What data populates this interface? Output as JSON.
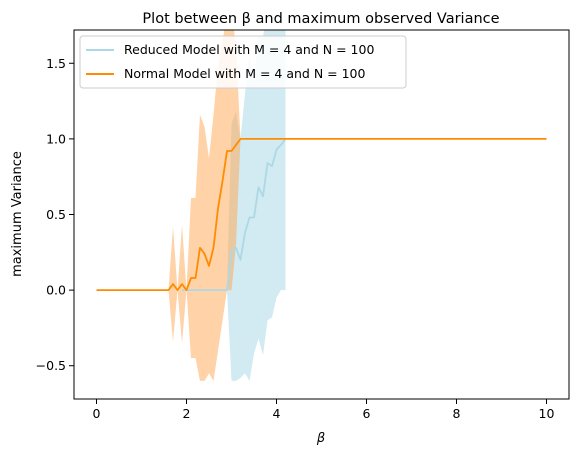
{
  "chart_data": {
    "type": "line",
    "title": "Plot between β and maximum observed Variance",
    "xlabel": "β",
    "ylabel": "maximum Variance",
    "xlim": [
      -0.5,
      10.5
    ],
    "ylim": [
      -0.72,
      1.72
    ],
    "xticks": [
      0,
      2,
      4,
      6,
      8,
      10
    ],
    "xtick_labels": [
      "0",
      "2",
      "4",
      "6",
      "8",
      "10"
    ],
    "yticks": [
      -0.5,
      0.0,
      0.5,
      1.0,
      1.5
    ],
    "ytick_labels": [
      "−0.5",
      "0.0",
      "0.5",
      "1.0",
      "1.5"
    ],
    "grid": false,
    "legend_position": "top-left",
    "series": [
      {
        "name": "Reduced Model with M = 4 and N = 100",
        "color": "#add8e6",
        "band_color": "#add8e6",
        "x": [
          1.9,
          2.9,
          3.0,
          3.1,
          3.2,
          3.3,
          3.4,
          3.5,
          3.6,
          3.7,
          3.8,
          3.9,
          4.0,
          4.1,
          4.2
        ],
        "y": [
          0.0,
          0.0,
          0.25,
          0.28,
          0.2,
          0.38,
          0.48,
          0.48,
          0.68,
          0.62,
          0.84,
          0.82,
          0.93,
          0.96,
          1.0
        ],
        "lower": [
          0.0,
          0.0,
          -0.6,
          -0.6,
          -0.58,
          -0.55,
          -0.6,
          -0.42,
          -0.32,
          -0.43,
          -0.2,
          -0.18,
          -0.05,
          0.0,
          0.0
        ],
        "upper": [
          0.0,
          0.0,
          1.1,
          1.18,
          1.0,
          1.3,
          1.56,
          1.37,
          1.68,
          1.67,
          1.88,
          1.82,
          1.91,
          1.92,
          2.0
        ]
      },
      {
        "name": "Normal Model with M = 4 and N = 100",
        "color": "#ff8c00",
        "band_color": "#ffa54f",
        "x": [
          0.0,
          1.6,
          1.7,
          1.8,
          1.9,
          2.0,
          2.1,
          2.2,
          2.3,
          2.4,
          2.5,
          2.6,
          2.7,
          2.8,
          2.9,
          3.0,
          3.1,
          3.2,
          3.3,
          10.0
        ],
        "y": [
          0.0,
          0.0,
          0.04,
          0.0,
          0.04,
          0.0,
          0.08,
          0.08,
          0.28,
          0.24,
          0.16,
          0.28,
          0.54,
          0.72,
          0.92,
          0.92,
          0.96,
          1.0,
          1.0,
          1.0
        ],
        "lower": [
          0.0,
          0.0,
          -0.34,
          0.0,
          -0.35,
          0.0,
          -0.45,
          -0.45,
          -0.6,
          -0.6,
          -0.55,
          -0.6,
          -0.4,
          -0.2,
          0.0,
          0.0,
          0.3,
          1.0,
          1.0,
          1.0
        ],
        "upper": [
          0.0,
          0.0,
          0.42,
          0.0,
          0.43,
          0.0,
          0.61,
          0.61,
          1.16,
          1.08,
          0.87,
          1.16,
          1.48,
          1.64,
          1.84,
          1.84,
          1.62,
          1.0,
          1.0,
          1.0
        ]
      }
    ]
  }
}
